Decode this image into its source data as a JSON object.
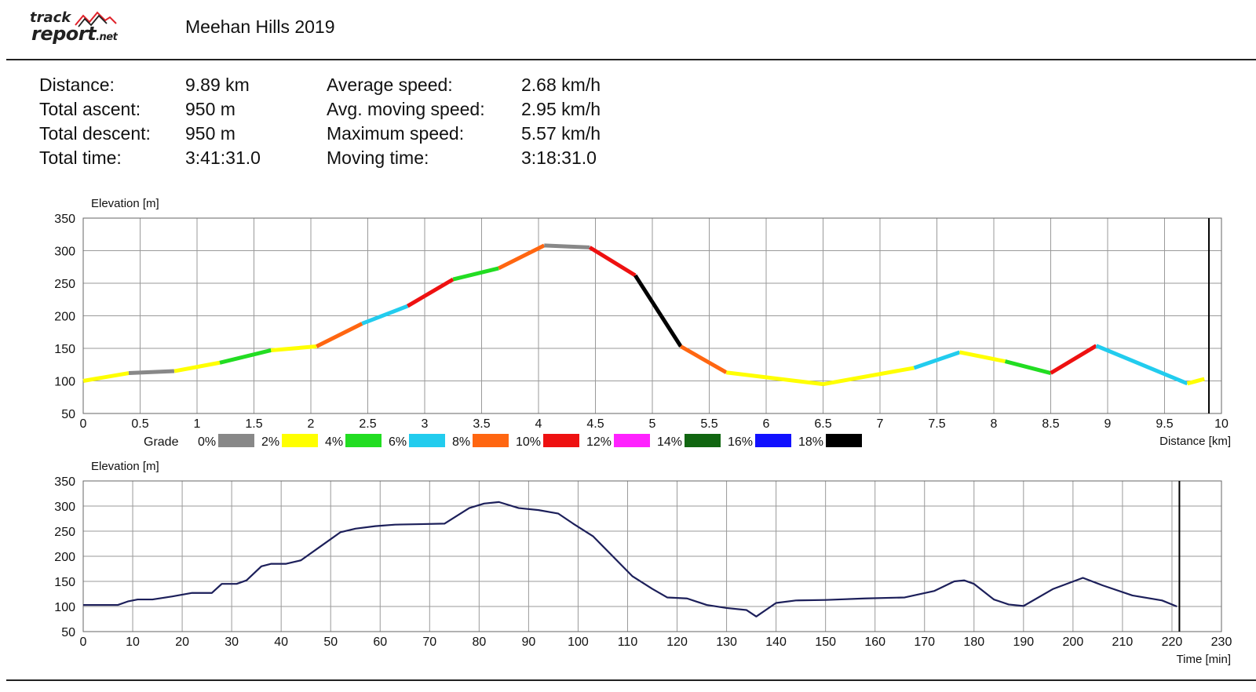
{
  "header": {
    "logo_top": "track",
    "logo_bottom": "report",
    "logo_suffix": ".net",
    "title": "Meehan Hills 2019"
  },
  "stats": [
    {
      "label": "Distance:",
      "value": "9.89 km"
    },
    {
      "label": "Total ascent:",
      "value": "950 m"
    },
    {
      "label": "Total descent:",
      "value": "950 m"
    },
    {
      "label": "Total time:",
      "value": "3:41:31.0"
    },
    {
      "label": "Average speed:",
      "value": "2.68 km/h"
    },
    {
      "label": "Avg. moving speed:",
      "value": "2.95 km/h"
    },
    {
      "label": "Maximum speed:",
      "value": "5.57 km/h"
    },
    {
      "label": "Moving time:",
      "value": "3:18:31.0"
    }
  ],
  "chart_data": [
    {
      "type": "line",
      "ylabel": "Elevation [m]",
      "xlabel": "Distance [km]",
      "xlim": [
        0,
        10
      ],
      "ylim": [
        50,
        350
      ],
      "xticks": [
        "0",
        "0.5",
        "1",
        "1.5",
        "2",
        "2.5",
        "3",
        "3.5",
        "4",
        "4.5",
        "5",
        "5.5",
        "6",
        "6.5",
        "7",
        "7.5",
        "8",
        "8.5",
        "9",
        "9.5",
        "10"
      ],
      "yticks": [
        "350",
        "300",
        "250",
        "200",
        "150",
        "100",
        "50"
      ],
      "marker_x": 9.89,
      "grid": true,
      "grade_legend": {
        "title": "Grade",
        "items": [
          {
            "label": "0%",
            "color": "#888888"
          },
          {
            "label": "2%",
            "color": "#ffff00"
          },
          {
            "label": "4%",
            "color": "#22dd22"
          },
          {
            "label": "6%",
            "color": "#22ccee"
          },
          {
            "label": "8%",
            "color": "#ff6611"
          },
          {
            "label": "10%",
            "color": "#ee1111"
          },
          {
            "label": "12%",
            "color": "#ff22ff"
          },
          {
            "label": "14%",
            "color": "#116611"
          },
          {
            "label": "16%",
            "color": "#1111ff"
          },
          {
            "label": "18%",
            "color": "#000000"
          }
        ]
      },
      "segments": [
        {
          "x": [
            0,
            0.4
          ],
          "y": [
            100,
            112
          ],
          "color": "#ffff00"
        },
        {
          "x": [
            0.4,
            0.8
          ],
          "y": [
            112,
            115
          ],
          "color": "#888888"
        },
        {
          "x": [
            0.8,
            1.2
          ],
          "y": [
            115,
            128
          ],
          "color": "#ffff00"
        },
        {
          "x": [
            1.2,
            1.65
          ],
          "y": [
            128,
            147
          ],
          "color": "#22dd22"
        },
        {
          "x": [
            1.65,
            2.05
          ],
          "y": [
            147,
            153
          ],
          "color": "#ffff00"
        },
        {
          "x": [
            2.05,
            2.45
          ],
          "y": [
            153,
            188
          ],
          "color": "#ff6611"
        },
        {
          "x": [
            2.45,
            2.85
          ],
          "y": [
            188,
            215
          ],
          "color": "#22ccee"
        },
        {
          "x": [
            2.85,
            3.25
          ],
          "y": [
            215,
            256
          ],
          "color": "#ee1111"
        },
        {
          "x": [
            3.25,
            3.65
          ],
          "y": [
            256,
            273
          ],
          "color": "#22dd22"
        },
        {
          "x": [
            3.65,
            4.05
          ],
          "y": [
            273,
            308
          ],
          "color": "#ff6611"
        },
        {
          "x": [
            4.05,
            4.45
          ],
          "y": [
            308,
            305
          ],
          "color": "#888888"
        },
        {
          "x": [
            4.45,
            4.85
          ],
          "y": [
            305,
            262
          ],
          "color": "#ee1111"
        },
        {
          "x": [
            4.85,
            5.25
          ],
          "y": [
            262,
            153
          ],
          "color": "#000000"
        },
        {
          "x": [
            5.25,
            5.65
          ],
          "y": [
            153,
            113
          ],
          "color": "#ff6611"
        },
        {
          "x": [
            5.65,
            6.5
          ],
          "y": [
            113,
            95
          ],
          "color": "#ffff00"
        },
        {
          "x": [
            6.5,
            7.3
          ],
          "y": [
            95,
            120
          ],
          "color": "#ffff00"
        },
        {
          "x": [
            7.3,
            7.7
          ],
          "y": [
            120,
            144
          ],
          "color": "#22ccee"
        },
        {
          "x": [
            7.7,
            8.1
          ],
          "y": [
            144,
            130
          ],
          "color": "#ffff00"
        },
        {
          "x": [
            8.1,
            8.5
          ],
          "y": [
            130,
            112
          ],
          "color": "#22dd22"
        },
        {
          "x": [
            8.5,
            8.9
          ],
          "y": [
            112,
            154
          ],
          "color": "#ee1111"
        },
        {
          "x": [
            8.9,
            9.7
          ],
          "y": [
            154,
            96
          ],
          "color": "#22ccee"
        },
        {
          "x": [
            9.7,
            9.85
          ],
          "y": [
            96,
            103
          ],
          "color": "#ffff00"
        }
      ]
    },
    {
      "type": "line",
      "ylabel": "Elevation [m]",
      "xlabel": "Time [min]",
      "xlim": [
        0,
        230
      ],
      "ylim": [
        50,
        350
      ],
      "xticks": [
        "0",
        "10",
        "20",
        "30",
        "40",
        "50",
        "60",
        "70",
        "80",
        "90",
        "100",
        "110",
        "120",
        "130",
        "140",
        "150",
        "160",
        "170",
        "180",
        "190",
        "200",
        "210",
        "220",
        "230"
      ],
      "yticks": [
        "350",
        "300",
        "250",
        "200",
        "150",
        "100",
        "50"
      ],
      "marker_x": 221.5,
      "grid": true,
      "series": [
        {
          "color": "#1c1f5a",
          "x": [
            0,
            7,
            9,
            11,
            14,
            18,
            22,
            26,
            28,
            31,
            33,
            36,
            38,
            41,
            44,
            48,
            52,
            55,
            59,
            63,
            68,
            73,
            78,
            81,
            84,
            88,
            92,
            96,
            99,
            103,
            107,
            111,
            115,
            118,
            122,
            126,
            130,
            134,
            136,
            140,
            144,
            150,
            158,
            166,
            172,
            176,
            178,
            180,
            184,
            187,
            190,
            196,
            202,
            206,
            212,
            218,
            221
          ],
          "y": [
            103,
            103,
            110,
            114,
            114,
            120,
            127,
            127,
            145,
            145,
            152,
            180,
            185,
            185,
            192,
            220,
            248,
            255,
            260,
            263,
            264,
            265,
            296,
            305,
            308,
            296,
            292,
            285,
            265,
            240,
            200,
            160,
            135,
            118,
            116,
            103,
            97,
            93,
            80,
            107,
            112,
            113,
            116,
            118,
            131,
            150,
            152,
            145,
            114,
            104,
            101,
            135,
            157,
            142,
            122,
            112,
            100
          ]
        }
      ]
    }
  ]
}
